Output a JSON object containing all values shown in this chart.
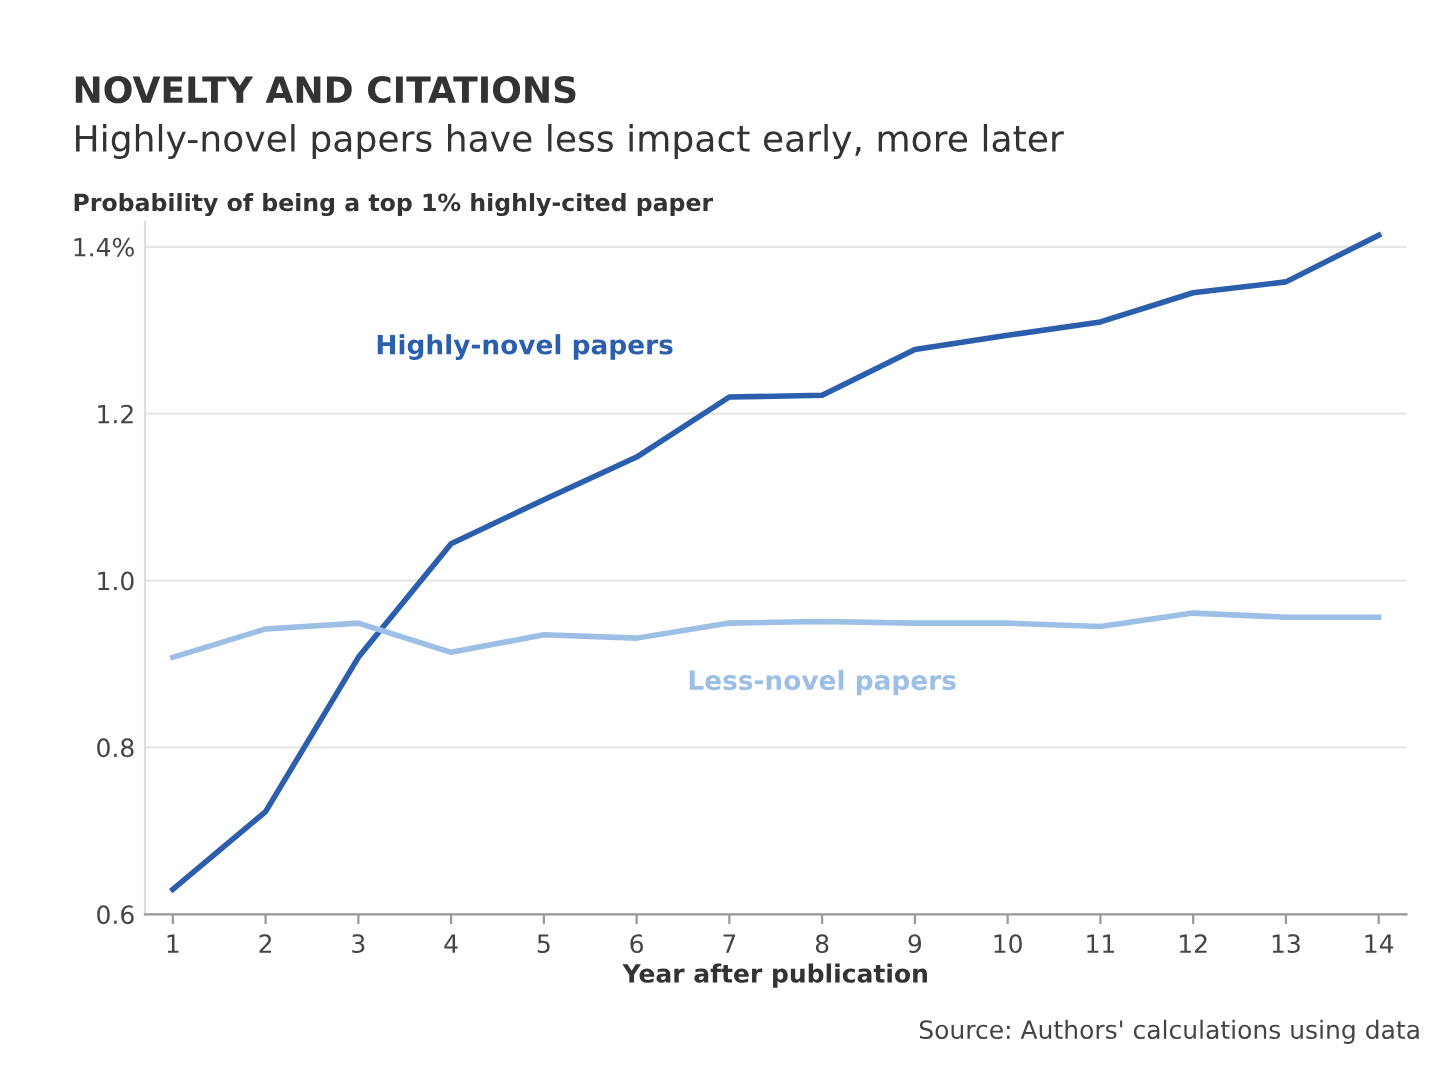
{
  "chart_data": {
    "type": "line",
    "title": "NOVELTY AND CITATIONS",
    "subtitle": "Highly-novel papers have less impact early, more later",
    "ylabel": "Probability of being a top 1% highly-cited paper",
    "xlabel": "Year after publication",
    "annotations": [
      "Source: Authors' calculations using data"
    ],
    "x": [
      1,
      2,
      3,
      4,
      5,
      6,
      7,
      8,
      9,
      10,
      11,
      12,
      13,
      14
    ],
    "series": [
      {
        "name": "Highly-novel papers",
        "color": "#2b5fae",
        "values": [
          0.63,
          0.723,
          0.908,
          1.044,
          1.097,
          1.148,
          1.22,
          1.222,
          1.277,
          1.294,
          1.31,
          1.345,
          1.358,
          1.414
        ]
      },
      {
        "name": "Less-novel papers",
        "color": "#9dbfe6",
        "values": [
          0.908,
          0.942,
          0.949,
          0.914,
          0.935,
          0.931,
          0.949,
          0.951,
          0.949,
          0.949,
          0.945,
          0.961,
          0.956,
          0.956
        ]
      }
    ],
    "xlim": [
      0.7,
      14.3
    ],
    "xticks": [
      1,
      2,
      3,
      4,
      5,
      6,
      7,
      8,
      9,
      10,
      11,
      12,
      13,
      14
    ],
    "ylim": [
      0.6,
      1.43
    ],
    "yticks": [
      0.6,
      0.8,
      {
        "value": 1.0,
        "label": "1.0"
      },
      1.2,
      {
        "value": 1.4,
        "label": "1.4%"
      }
    ],
    "grid": "y",
    "legend": false,
    "marker": "none",
    "line_style": "solid"
  }
}
